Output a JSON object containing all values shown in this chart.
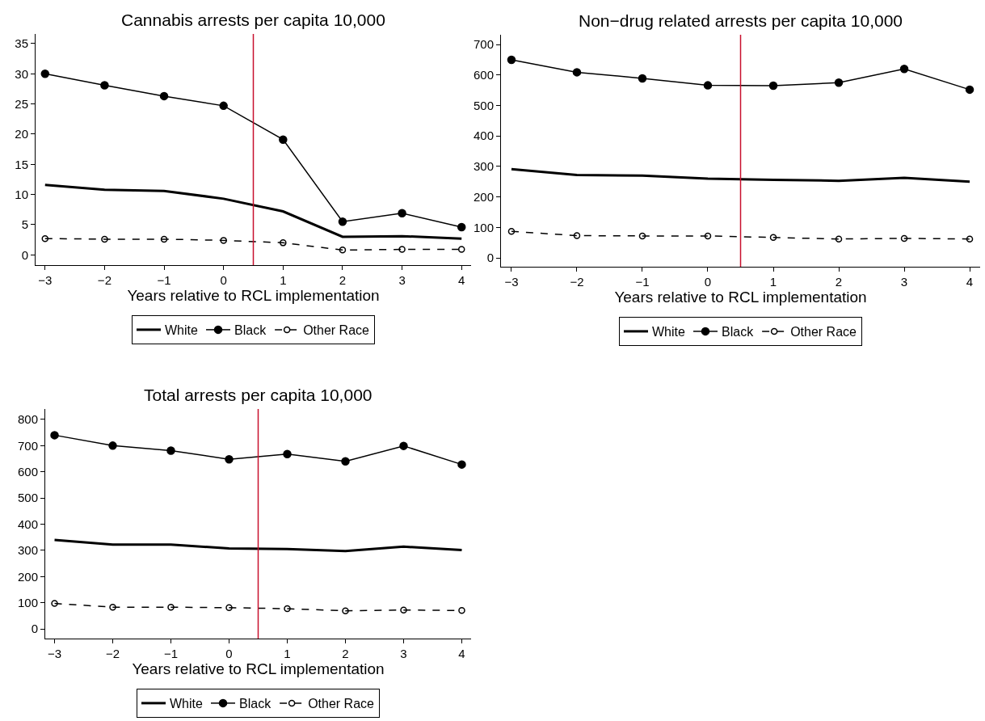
{
  "chart_data": [
    {
      "type": "line",
      "title": "Cannabis arrests per capita 10,000",
      "xlabel": "Years relative to RCL implementation",
      "x": [
        -3,
        -2,
        -1,
        0,
        1,
        2,
        3,
        4
      ],
      "xlim": [
        -3.16,
        4.16
      ],
      "xticks": [
        -3,
        -2,
        -1,
        0,
        1,
        2,
        3,
        4
      ],
      "ylim": [
        -1.7,
        36.6
      ],
      "yticks": [
        0,
        5,
        10,
        15,
        20,
        25,
        30,
        35
      ],
      "legend": "bottom",
      "ref_lines": [
        {
          "axis": "x",
          "value": 0.5,
          "color": "#c8102e"
        }
      ],
      "series": [
        {
          "name": "White",
          "color": "#000000",
          "marker": "none",
          "line_style": "solid",
          "values": [
            11.6,
            10.8,
            10.6,
            9.3,
            7.2,
            3.0,
            3.1,
            2.7
          ]
        },
        {
          "name": "Black",
          "color": "#000000",
          "marker": "circle",
          "line_style": "solid",
          "values": [
            30.0,
            28.1,
            26.3,
            24.7,
            19.1,
            5.5,
            6.9,
            4.6
          ]
        },
        {
          "name": "Other Race",
          "color": "#000000",
          "marker": "circle-open",
          "line_style": "dashed",
          "values": [
            2.7,
            2.6,
            2.6,
            2.4,
            2.0,
            0.8,
            0.9,
            0.9
          ]
        }
      ]
    },
    {
      "type": "line",
      "title": "Non−drug related arrests per capita 10,000",
      "xlabel": "Years relative to RCL implementation",
      "x": [
        -3,
        -2,
        -1,
        0,
        1,
        2,
        3,
        4
      ],
      "xlim": [
        -3.16,
        4.16
      ],
      "xticks": [
        -3,
        -2,
        -1,
        0,
        1,
        2,
        3,
        4
      ],
      "ylim": [
        -29,
        732
      ],
      "yticks": [
        0,
        100,
        200,
        300,
        400,
        500,
        600,
        700
      ],
      "legend": "bottom",
      "ref_lines": [
        {
          "axis": "x",
          "value": 0.5,
          "color": "#c8102e"
        }
      ],
      "series": [
        {
          "name": "White",
          "color": "#000000",
          "marker": "none",
          "line_style": "solid",
          "values": [
            291,
            272,
            270,
            260,
            256,
            253,
            263,
            250
          ]
        },
        {
          "name": "Black",
          "color": "#000000",
          "marker": "circle",
          "line_style": "solid",
          "values": [
            650,
            609,
            589,
            566,
            565,
            575,
            620,
            552
          ]
        },
        {
          "name": "Other Race",
          "color": "#000000",
          "marker": "circle-open",
          "line_style": "dashed",
          "values": [
            87,
            73,
            72,
            72,
            67,
            62,
            64,
            62
          ]
        }
      ]
    },
    {
      "type": "line",
      "title": "Total arrests per capita 10,000",
      "xlabel": "Years relative to RCL implementation",
      "x": [
        -3,
        -2,
        -1,
        0,
        1,
        2,
        3,
        4
      ],
      "xlim": [
        -3.16,
        4.16
      ],
      "xticks": [
        -3,
        -2,
        -1,
        0,
        1,
        2,
        3,
        4
      ],
      "ylim": [
        -37,
        840
      ],
      "yticks": [
        0,
        100,
        200,
        300,
        400,
        500,
        600,
        700,
        800
      ],
      "legend": "bottom",
      "ref_lines": [
        {
          "axis": "x",
          "value": 0.5,
          "color": "#c8102e"
        }
      ],
      "series": [
        {
          "name": "White",
          "color": "#000000",
          "marker": "none",
          "line_style": "solid",
          "values": [
            340,
            322,
            322,
            307,
            305,
            297,
            314,
            301
          ]
        },
        {
          "name": "Black",
          "color": "#000000",
          "marker": "circle",
          "line_style": "solid",
          "values": [
            740,
            700,
            681,
            648,
            668,
            640,
            699,
            628
          ]
        },
        {
          "name": "Other Race",
          "color": "#000000",
          "marker": "circle-open",
          "line_style": "dashed",
          "values": [
            97,
            83,
            83,
            81,
            77,
            69,
            72,
            70
          ]
        }
      ]
    }
  ]
}
